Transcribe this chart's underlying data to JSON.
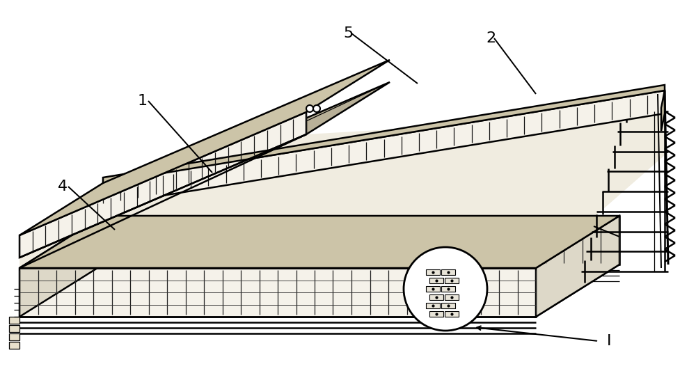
{
  "bg_color": "#ffffff",
  "line_color": "#000000",
  "cream": "#f5f2ea",
  "tan": "#e8e0cc",
  "label_fontsize": 16,
  "lw_main": 1.8,
  "lw_thin": 0.9,
  "lw_thick": 2.5
}
